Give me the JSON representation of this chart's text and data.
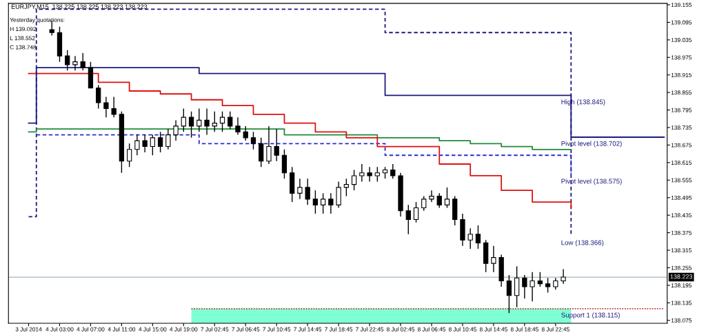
{
  "chart_data": {
    "type": "candlestick",
    "title": "EURJPY,M15  138.225 138.225 138.223 138.223",
    "subtitle": "Yesterday quotations:\nH 139.092\nL 138.552\nC 138.748",
    "annotations": [
      "High (138.845)",
      {
        "text": "Pivot level (138.702)",
        "y": 138.702
      },
      "Pivot level (138.575)",
      "Low (138.366)",
      {
        "text": "Support 1 (138.115)",
        "y": 138.115
      }
    ],
    "categories": [
      "3 Jul 2014",
      null,
      null,
      null,
      "4 Jul 03:00",
      null,
      null,
      null,
      "4 Jul 07:00",
      null,
      null,
      null,
      "4 Jul 11:00",
      null,
      null,
      null,
      "4 Jul 15:00",
      null,
      null,
      null,
      "4 Jul 19:00",
      null,
      null,
      null,
      "7 Jul 02:45",
      null,
      null,
      null,
      "7 Jul 06:45",
      null,
      null,
      null,
      "7 Jul 10:45",
      null,
      null,
      null,
      "7 Jul 14:45",
      null,
      null,
      null,
      "7 Jul 18:45",
      null,
      null,
      null,
      "7 Jul 22:45",
      null,
      null,
      null,
      "8 Jul 02:45",
      null,
      null,
      null,
      "8 Jul 06:45",
      null,
      null,
      null,
      "8 Jul 10:45",
      null,
      null,
      null,
      "8 Jul 14:45",
      null,
      null,
      null,
      "8 Jul 18:45",
      null,
      null,
      null,
      "8 Jul 22:45",
      null,
      null,
      null,
      null,
      null,
      null,
      null,
      null,
      null,
      null,
      null,
      null,
      null,
      null
    ],
    "ohlc": [
      null,
      null,
      null,
      [
        139.07,
        139.1,
        139.05,
        139.06
      ],
      [
        139.06,
        139.08,
        138.96,
        138.98
      ],
      [
        138.98,
        139.0,
        138.93,
        138.95
      ],
      [
        138.95,
        138.98,
        138.93,
        138.96
      ],
      [
        138.96,
        138.99,
        138.93,
        138.94
      ],
      [
        138.94,
        138.96,
        138.87,
        138.87
      ],
      [
        138.87,
        138.88,
        138.8,
        138.82
      ],
      [
        138.82,
        138.84,
        138.77,
        138.8
      ],
      [
        138.8,
        138.84,
        138.77,
        138.78
      ],
      [
        138.78,
        138.79,
        138.58,
        138.62
      ],
      [
        138.62,
        138.68,
        138.6,
        138.66
      ],
      [
        138.66,
        138.71,
        138.64,
        138.69
      ],
      [
        138.69,
        138.71,
        138.65,
        138.67
      ],
      [
        138.67,
        138.71,
        138.64,
        138.7
      ],
      [
        138.7,
        138.72,
        138.65,
        138.67
      ],
      [
        138.67,
        138.73,
        138.66,
        138.71
      ],
      [
        138.71,
        138.76,
        138.69,
        138.74
      ],
      [
        138.74,
        138.8,
        138.72,
        138.77
      ],
      [
        138.77,
        138.79,
        138.7,
        138.74
      ],
      [
        138.74,
        138.8,
        138.72,
        138.76
      ],
      [
        138.76,
        138.8,
        138.71,
        138.74
      ],
      [
        138.74,
        138.79,
        138.72,
        138.75
      ],
      [
        138.75,
        138.79,
        138.72,
        138.77
      ],
      [
        138.77,
        138.79,
        138.73,
        138.74
      ],
      [
        138.74,
        138.77,
        138.71,
        138.72
      ],
      [
        138.72,
        138.74,
        138.69,
        138.7
      ],
      [
        138.7,
        138.72,
        138.66,
        138.68
      ],
      [
        138.68,
        138.7,
        138.6,
        138.62
      ],
      [
        138.62,
        138.74,
        138.61,
        138.67
      ],
      [
        138.67,
        138.73,
        138.62,
        138.64
      ],
      [
        138.64,
        138.66,
        138.56,
        138.58
      ],
      [
        138.58,
        138.6,
        138.48,
        138.51
      ],
      [
        138.51,
        138.56,
        138.49,
        138.53
      ],
      [
        138.53,
        138.56,
        138.47,
        138.49
      ],
      [
        138.49,
        138.52,
        138.44,
        138.47
      ],
      [
        138.47,
        138.51,
        138.44,
        138.49
      ],
      [
        138.49,
        138.51,
        138.44,
        138.47
      ],
      [
        138.47,
        138.55,
        138.46,
        138.53
      ],
      [
        138.53,
        138.56,
        138.5,
        138.54
      ],
      [
        138.54,
        138.59,
        138.52,
        138.57
      ],
      [
        138.57,
        138.61,
        138.55,
        138.58
      ],
      [
        138.58,
        138.6,
        138.55,
        138.57
      ],
      [
        138.57,
        138.6,
        138.55,
        138.58
      ],
      [
        138.58,
        138.6,
        138.56,
        138.59
      ],
      [
        138.59,
        138.61,
        138.56,
        138.57
      ],
      [
        138.57,
        138.58,
        138.43,
        138.45
      ],
      [
        138.45,
        138.47,
        138.37,
        138.42
      ],
      [
        138.42,
        138.48,
        138.41,
        138.46
      ],
      [
        138.46,
        138.5,
        138.45,
        138.49
      ],
      [
        138.49,
        138.52,
        138.48,
        138.5
      ],
      [
        138.5,
        138.51,
        138.46,
        138.47
      ],
      [
        138.47,
        138.53,
        138.46,
        138.49
      ],
      [
        138.49,
        138.5,
        138.4,
        138.42
      ],
      [
        138.42,
        138.44,
        138.33,
        138.35
      ],
      [
        138.35,
        138.39,
        138.32,
        138.37
      ],
      [
        138.37,
        138.4,
        138.32,
        138.34
      ],
      [
        138.34,
        138.35,
        138.24,
        138.27
      ],
      [
        138.27,
        138.33,
        138.24,
        138.29
      ],
      [
        138.29,
        138.3,
        138.19,
        138.21
      ],
      [
        138.21,
        138.23,
        138.1,
        138.16
      ],
      [
        138.16,
        138.26,
        138.12,
        138.22
      ],
      [
        138.22,
        138.23,
        138.15,
        138.19
      ],
      [
        138.19,
        138.24,
        138.14,
        138.21
      ],
      [
        138.21,
        138.24,
        138.19,
        138.2
      ],
      [
        138.2,
        138.22,
        138.17,
        138.19
      ],
      [
        138.19,
        138.22,
        138.18,
        138.21
      ],
      [
        138.21,
        138.25,
        138.2,
        138.223
      ],
      null,
      null,
      null,
      null,
      null,
      null,
      null,
      null,
      null,
      null,
      null,
      null,
      null
    ],
    "series": [
      {
        "type": "area",
        "color": "#7fffd4",
        "values": [
          null,
          null,
          null,
          null,
          null,
          null,
          null,
          null,
          null,
          null,
          null,
          null,
          null,
          null,
          null,
          null,
          null,
          null,
          null,
          null,
          null,
          138.115,
          138.115,
          138.115,
          138.115,
          138.115,
          138.115,
          138.115,
          138.115,
          138.115,
          138.115,
          138.115,
          138.115,
          138.115,
          138.115,
          138.115,
          138.115,
          138.115,
          138.115,
          138.115,
          138.115,
          138.115,
          138.115,
          138.115,
          138.115,
          138.115,
          138.115,
          138.115,
          138.115,
          138.115,
          138.115,
          138.115,
          138.115,
          138.115,
          138.115,
          138.115,
          138.115,
          138.115,
          138.115,
          138.115,
          138.115,
          138.115,
          138.115,
          138.115,
          138.115,
          138.115,
          138.115,
          138.115,
          138.115,
          138.115,
          138.115,
          null,
          null,
          null,
          null,
          null,
          null,
          null,
          null,
          null,
          null,
          null,
          null
        ]
      },
      {
        "type": "step",
        "color": "#c04040",
        "line_style": "dotted",
        "values": [
          null,
          null,
          null,
          null,
          null,
          null,
          null,
          null,
          null,
          null,
          null,
          null,
          null,
          null,
          null,
          null,
          null,
          null,
          null,
          null,
          null,
          138.115,
          138.115,
          138.115,
          138.115,
          138.115,
          138.115,
          138.115,
          138.115,
          138.115,
          138.115,
          138.115,
          138.115,
          138.115,
          138.115,
          138.115,
          138.115,
          138.115,
          138.115,
          138.115,
          138.115,
          138.115,
          138.115,
          138.115,
          138.115,
          138.115,
          138.115,
          138.115,
          138.115,
          138.115,
          138.115,
          138.115,
          138.115,
          138.115,
          138.115,
          138.115,
          138.115,
          138.115,
          138.115,
          138.115,
          138.115,
          138.115,
          138.115,
          138.115,
          138.115,
          138.115,
          138.115,
          138.115,
          138.115,
          138.115,
          138.115,
          138.115,
          138.115,
          138.115,
          138.115,
          138.115,
          138.115,
          138.115,
          138.115,
          138.115,
          138.115,
          138.115,
          138.115
        ]
      },
      {
        "type": "step",
        "color": "#1a1a80",
        "line_style": "dashed",
        "values": [
          138.43,
          139.14,
          139.14,
          139.14,
          139.14,
          139.14,
          139.14,
          139.14,
          139.14,
          139.14,
          139.14,
          139.14,
          139.14,
          139.14,
          139.14,
          139.14,
          139.14,
          139.14,
          139.14,
          139.14,
          139.14,
          139.14,
          139.14,
          139.14,
          139.14,
          139.14,
          139.14,
          139.14,
          139.14,
          139.14,
          139.14,
          139.14,
          139.14,
          139.14,
          139.14,
          139.14,
          139.14,
          139.14,
          139.14,
          139.14,
          139.14,
          139.14,
          139.14,
          139.14,
          139.14,
          139.14,
          139.06,
          139.06,
          139.06,
          139.06,
          139.06,
          139.06,
          139.06,
          139.06,
          139.06,
          139.06,
          139.06,
          139.06,
          139.06,
          139.06,
          139.06,
          139.06,
          139.06,
          139.06,
          139.06,
          139.06,
          139.06,
          139.06,
          139.06,
          139.06,
          138.366,
          null,
          null,
          null,
          null,
          null,
          null,
          null,
          null,
          null,
          null,
          null,
          null
        ]
      },
      {
        "type": "step",
        "color": "#2a2ad0",
        "line_style": "dashed",
        "values": [
          null,
          138.71,
          138.71,
          138.71,
          138.71,
          138.71,
          138.71,
          138.71,
          138.71,
          138.71,
          138.71,
          138.71,
          138.71,
          138.71,
          138.71,
          138.71,
          138.71,
          138.71,
          138.71,
          138.71,
          138.71,
          138.71,
          138.68,
          138.68,
          138.68,
          138.68,
          138.68,
          138.68,
          138.68,
          138.68,
          138.68,
          138.68,
          138.68,
          138.68,
          138.68,
          138.68,
          138.68,
          138.68,
          138.68,
          138.68,
          138.68,
          138.68,
          138.68,
          138.68,
          138.68,
          138.68,
          138.64,
          138.64,
          138.64,
          138.64,
          138.64,
          138.64,
          138.64,
          138.64,
          138.64,
          138.64,
          138.64,
          138.64,
          138.64,
          138.64,
          138.64,
          138.64,
          138.64,
          138.64,
          138.64,
          138.64,
          138.64,
          138.64,
          138.64,
          138.64,
          138.575,
          null,
          null,
          null,
          null,
          null,
          null,
          null,
          null,
          null,
          null,
          null,
          null
        ]
      },
      {
        "type": "step",
        "color": "#1f8a3a",
        "line_style": "solid",
        "values": [
          138.72,
          138.73,
          138.73,
          138.73,
          138.73,
          138.73,
          138.73,
          138.73,
          138.73,
          138.73,
          138.73,
          138.73,
          138.73,
          138.73,
          138.73,
          138.73,
          138.73,
          138.73,
          138.73,
          138.73,
          138.73,
          138.73,
          138.73,
          138.73,
          138.73,
          138.73,
          138.73,
          138.73,
          138.73,
          138.73,
          138.73,
          138.73,
          138.73,
          138.71,
          138.71,
          138.71,
          138.71,
          138.71,
          138.71,
          138.71,
          138.71,
          138.71,
          138.71,
          138.71,
          138.71,
          138.7,
          138.7,
          138.7,
          138.7,
          138.7,
          138.7,
          138.7,
          138.7,
          138.69,
          138.69,
          138.69,
          138.69,
          138.68,
          138.68,
          138.68,
          138.68,
          138.67,
          138.67,
          138.67,
          138.67,
          138.66,
          138.66,
          138.66,
          138.66,
          138.66,
          138.66,
          null,
          null,
          null,
          null,
          null,
          null,
          null,
          null,
          null,
          null,
          null,
          null
        ]
      },
      {
        "type": "step",
        "color": "#dd1111",
        "line_style": "solid",
        "values": [
          138.92,
          138.92,
          138.92,
          138.92,
          138.92,
          138.92,
          138.92,
          138.92,
          138.92,
          138.89,
          138.89,
          138.89,
          138.89,
          138.86,
          138.86,
          138.86,
          138.86,
          138.85,
          138.85,
          138.85,
          138.85,
          138.83,
          138.83,
          138.83,
          138.83,
          138.81,
          138.81,
          138.81,
          138.81,
          138.78,
          138.78,
          138.78,
          138.78,
          138.75,
          138.75,
          138.75,
          138.75,
          138.72,
          138.72,
          138.72,
          138.72,
          138.7,
          138.7,
          138.7,
          138.7,
          138.67,
          138.67,
          138.67,
          138.67,
          138.67,
          138.67,
          138.67,
          138.67,
          138.61,
          138.61,
          138.61,
          138.61,
          138.57,
          138.57,
          138.57,
          138.57,
          138.52,
          138.52,
          138.52,
          138.52,
          138.48,
          138.48,
          138.48,
          138.48,
          138.48,
          138.46,
          null,
          null,
          null,
          null,
          null,
          null,
          null,
          null,
          null,
          null,
          null,
          null
        ]
      },
      {
        "type": "step",
        "color": "#1a1a80",
        "line_style": "solid",
        "values": [
          138.75,
          138.94,
          138.94,
          138.94,
          138.94,
          138.94,
          138.94,
          138.94,
          138.94,
          138.94,
          138.94,
          138.94,
          138.94,
          138.94,
          138.94,
          138.94,
          138.94,
          138.94,
          138.94,
          138.94,
          138.94,
          138.94,
          138.92,
          138.92,
          138.92,
          138.92,
          138.92,
          138.92,
          138.92,
          138.92,
          138.92,
          138.92,
          138.92,
          138.92,
          138.92,
          138.92,
          138.92,
          138.92,
          138.92,
          138.92,
          138.92,
          138.92,
          138.92,
          138.92,
          138.92,
          138.92,
          138.845,
          138.845,
          138.845,
          138.845,
          138.845,
          138.845,
          138.845,
          138.845,
          138.845,
          138.845,
          138.845,
          138.845,
          138.845,
          138.845,
          138.845,
          138.845,
          138.845,
          138.845,
          138.845,
          138.845,
          138.845,
          138.845,
          138.845,
          138.845,
          138.702,
          138.702,
          138.702,
          138.702,
          138.702,
          138.702,
          138.702,
          138.702,
          138.702,
          138.702,
          138.702,
          138.702,
          138.702
        ]
      }
    ],
    "ref_lines": [
      {
        "axis": "y",
        "value": 138.223,
        "label": "138.223",
        "color": "#9fb5c2"
      }
    ],
    "ylim": [
      138.065,
      139.16
    ],
    "yticks": [
      139.155,
      139.095,
      139.035,
      138.975,
      138.915,
      138.855,
      138.795,
      138.735,
      138.675,
      138.615,
      138.555,
      138.495,
      138.435,
      138.375,
      138.315,
      138.255,
      138.195,
      138.135,
      138.075
    ]
  }
}
